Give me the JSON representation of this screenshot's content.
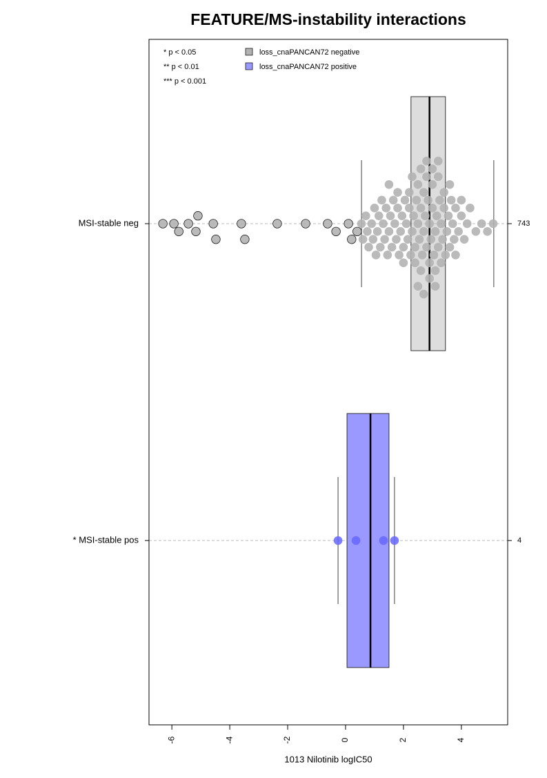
{
  "chart_data": {
    "type": "box",
    "title": "FEATURE/MS-instability interactions",
    "xlabel": "1013 Nilotinib logIC50",
    "xlim": [
      -6.79,
      5.6
    ],
    "xticks": [
      -6,
      -4,
      -2,
      0,
      2,
      4
    ],
    "significance_notes": [
      "* p < 0.05",
      "** p < 0.01",
      "*** p < 0.001"
    ],
    "series": [
      {
        "name": "loss_cnaPANCAN72 negative",
        "color": "#b3b3b3",
        "category": "MSI-stable neg",
        "count": 743,
        "whislo": 0.55,
        "q1": 2.26,
        "med": 2.9,
        "q3": 3.45,
        "whishi": 5.12,
        "points": [
          -6.31,
          -5.93,
          -5.76,
          -5.43,
          -5.17,
          -5.1,
          -4.57,
          -4.48,
          -3.6,
          -3.48,
          -2.36,
          -1.38,
          -0.62,
          -0.33,
          0.1,
          0.21,
          0.4,
          0.55,
          0.6,
          0.7,
          0.75,
          0.8,
          0.9,
          0.95,
          1.0,
          1.05,
          1.1,
          1.15,
          1.2,
          1.25,
          1.3,
          1.35,
          1.4,
          1.45,
          1.5,
          1.55,
          1.6,
          1.65,
          1.7,
          1.75,
          1.8,
          1.85,
          1.9,
          1.95,
          2.0,
          2.05,
          2.1,
          2.15,
          2.2,
          2.25,
          2.3,
          2.35,
          2.4,
          2.45,
          2.5,
          2.55,
          2.6,
          2.65,
          2.7,
          2.75,
          2.8,
          2.85,
          2.9,
          2.9,
          2.95,
          3.0,
          3.05,
          3.1,
          3.15,
          3.2,
          3.25,
          3.3,
          3.35,
          3.4,
          3.45,
          3.5,
          3.55,
          3.6,
          3.65,
          3.7,
          3.75,
          3.8,
          3.9,
          4.0,
          4.1,
          4.2,
          4.3,
          4.5,
          4.7,
          4.9,
          5.1,
          2.2,
          2.4,
          2.5,
          2.6,
          2.7,
          2.8,
          3.0,
          3.1,
          3.2,
          3.3,
          2.3,
          2.6,
          2.9,
          3.1,
          3.4,
          2.5,
          2.8,
          3.0,
          2.7,
          3.2,
          1.8,
          2.0,
          3.6,
          3.8,
          1.5,
          4.0
        ]
      },
      {
        "name": "loss_cnaPANCAN72 positive",
        "color": "#9999ff",
        "category": "* MSI-stable pos",
        "count": 4,
        "whislo": -0.26,
        "q1": 0.05,
        "med": 0.86,
        "q3": 1.5,
        "whishi": 1.69,
        "points": [
          -0.26,
          0.36,
          1.31,
          1.69
        ]
      }
    ]
  }
}
